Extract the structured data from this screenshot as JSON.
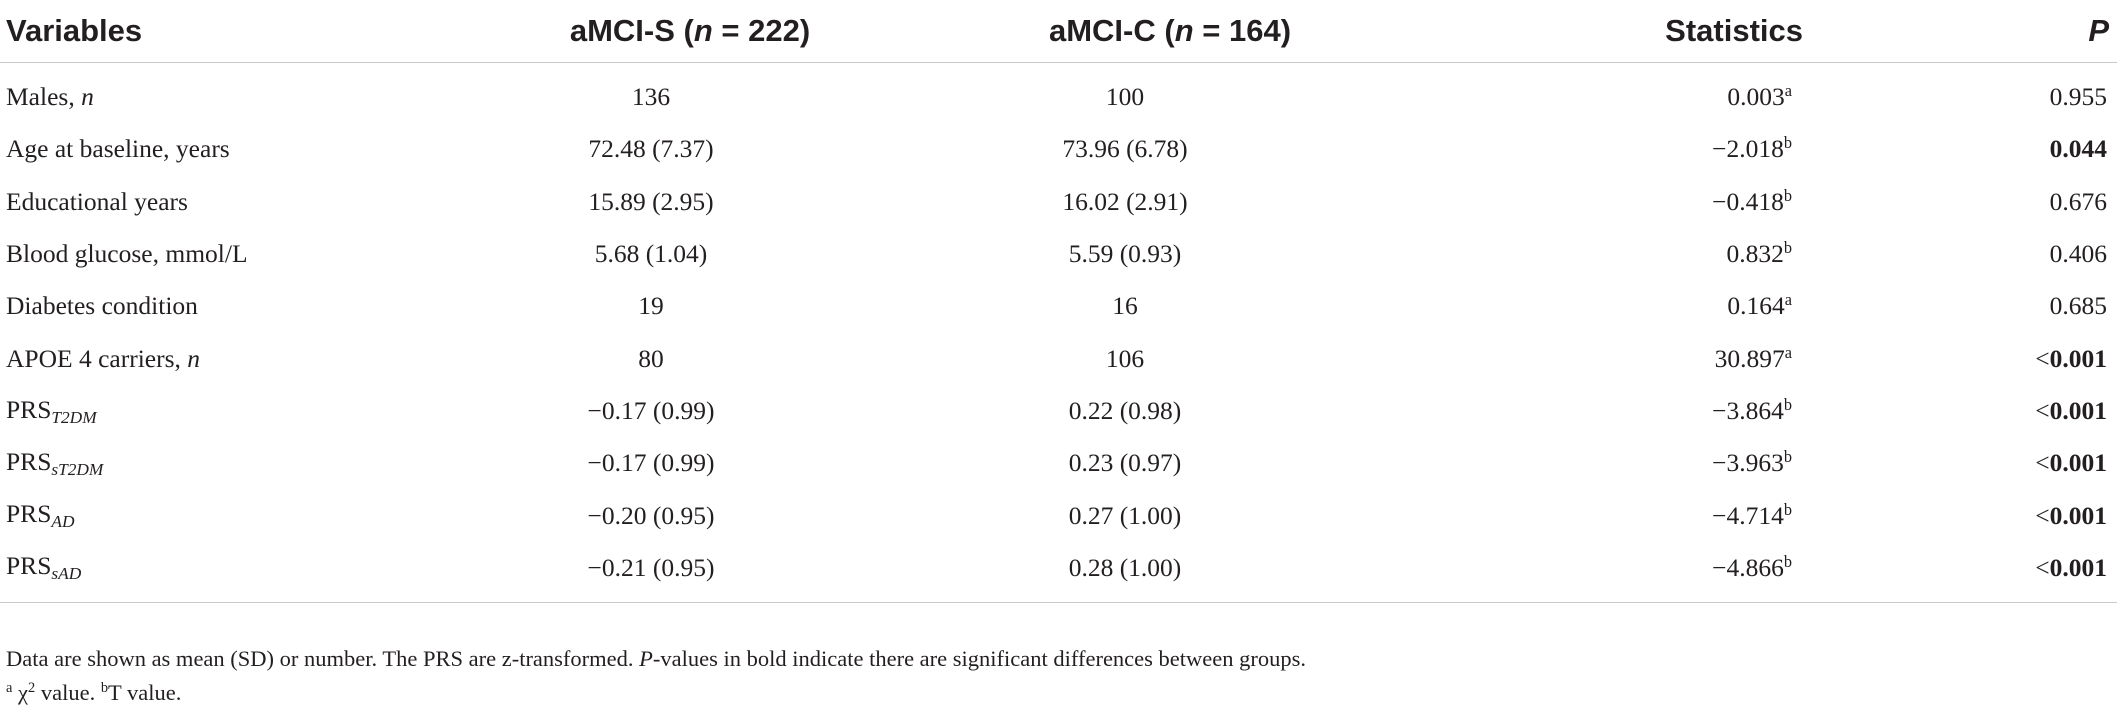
{
  "table": {
    "headers": {
      "variables": "Variables",
      "group_s_label": "aMCI-S (",
      "group_s_n_italic": "n",
      "group_s_count": " = 222)",
      "group_c_label": "aMCI-C (",
      "group_c_n_italic": "n",
      "group_c_count": " = 164)",
      "statistics": "Statistics",
      "p": "P"
    },
    "rows": [
      {
        "variable": "Males, ",
        "variable_italic": "n",
        "variable_sub": "",
        "aMCI_S": "136",
        "aMCI_C": "100",
        "statistic": "0.003",
        "stat_mark": "a",
        "p_prefix": "",
        "p_value": "0.955",
        "p_bold": false
      },
      {
        "variable": "Age at baseline, years",
        "variable_italic": "",
        "variable_sub": "",
        "aMCI_S": "72.48 (7.37)",
        "aMCI_C": "73.96 (6.78)",
        "statistic": "−2.018",
        "stat_mark": "b",
        "p_prefix": "",
        "p_value": "0.044",
        "p_bold": true
      },
      {
        "variable": "Educational years",
        "variable_italic": "",
        "variable_sub": "",
        "aMCI_S": "15.89 (2.95)",
        "aMCI_C": "16.02 (2.91)",
        "statistic": "−0.418",
        "stat_mark": "b",
        "p_prefix": "",
        "p_value": "0.676",
        "p_bold": false
      },
      {
        "variable": "Blood glucose, mmol/L",
        "variable_italic": "",
        "variable_sub": "",
        "aMCI_S": "5.68 (1.04)",
        "aMCI_C": "5.59 (0.93)",
        "statistic": "0.832",
        "stat_mark": "b",
        "p_prefix": "",
        "p_value": "0.406",
        "p_bold": false
      },
      {
        "variable": "Diabetes condition",
        "variable_italic": "",
        "variable_sub": "",
        "aMCI_S": "19",
        "aMCI_C": "16",
        "statistic": "0.164",
        "stat_mark": "a",
        "p_prefix": "",
        "p_value": "0.685",
        "p_bold": false
      },
      {
        "variable": "APOE 4 carriers, ",
        "variable_italic": "n",
        "variable_sub": "",
        "aMCI_S": "80",
        "aMCI_C": "106",
        "statistic": "30.897",
        "stat_mark": "a",
        "p_prefix": "<",
        "p_value": "0.001",
        "p_bold": true
      },
      {
        "variable": "PRS",
        "variable_italic": "",
        "variable_sub": "T2DM",
        "aMCI_S": "−0.17 (0.99)",
        "aMCI_C": "0.22 (0.98)",
        "statistic": "−3.864",
        "stat_mark": "b",
        "p_prefix": "<",
        "p_value": "0.001",
        "p_bold": true
      },
      {
        "variable": "PRS",
        "variable_italic": "",
        "variable_sub": "sT2DM",
        "aMCI_S": "−0.17 (0.99)",
        "aMCI_C": "0.23 (0.97)",
        "statistic": "−3.963",
        "stat_mark": "b",
        "p_prefix": "<",
        "p_value": "0.001",
        "p_bold": true
      },
      {
        "variable": "PRS",
        "variable_italic": "",
        "variable_sub": "AD",
        "aMCI_S": "−0.20 (0.95)",
        "aMCI_C": "0.27 (1.00)",
        "statistic": "−4.714",
        "stat_mark": "b",
        "p_prefix": "<",
        "p_value": "0.001",
        "p_bold": true
      },
      {
        "variable": "PRS",
        "variable_italic": "",
        "variable_sub": "sAD",
        "aMCI_S": "−0.21 (0.95)",
        "aMCI_C": "0.28 (1.00)",
        "statistic": "−4.866",
        "stat_mark": "b",
        "p_prefix": "<",
        "p_value": "0.001",
        "p_bold": true
      }
    ]
  },
  "footnotes": {
    "line1_part1": "Data are shown as mean (SD) or number. The PRS are z-transformed. ",
    "line1_p_italic": "P",
    "line1_part2": "-values in bold indicate there are significant differences between groups.",
    "line2_mark_a": "a",
    "line2_chi": " χ",
    "line2_chi_exp": "2",
    "line2_mid": " value. ",
    "line2_mark_b": "b",
    "line2_end": "T value."
  },
  "colors": {
    "text": "#231f20",
    "rule": "#c9c9c9"
  }
}
